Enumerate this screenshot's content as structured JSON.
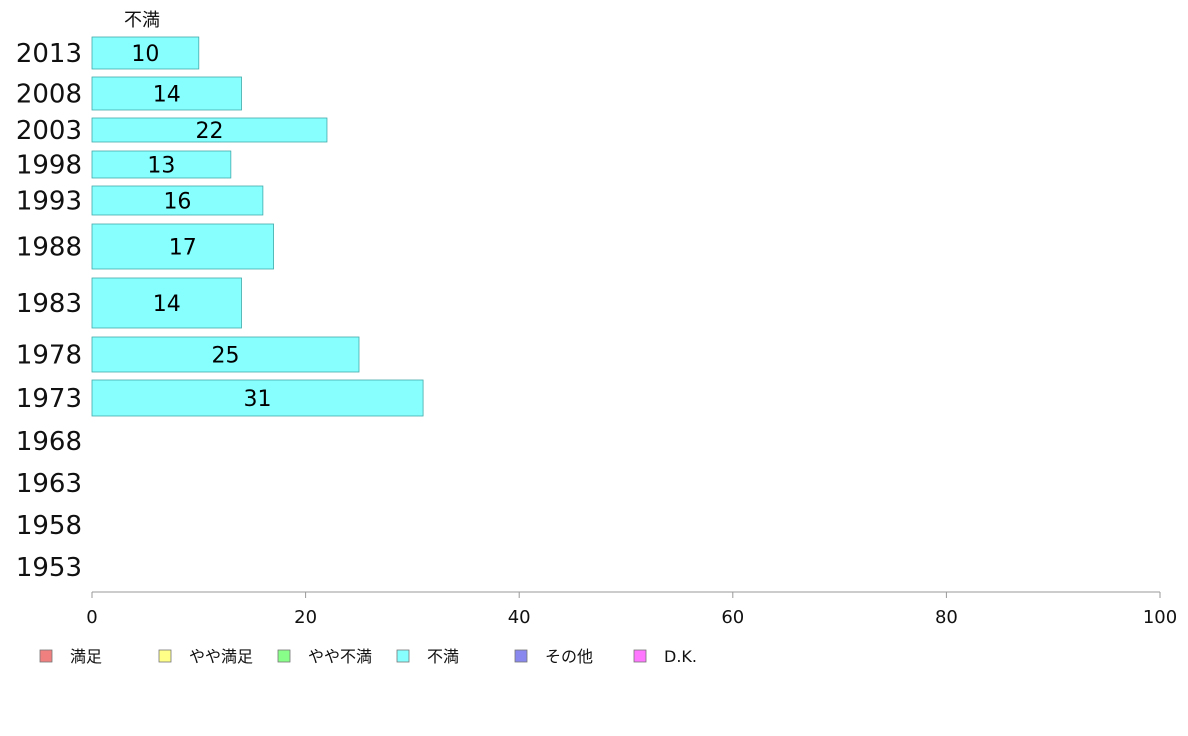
{
  "chart_data": {
    "type": "bar",
    "orientation": "horizontal",
    "column_header": "不満",
    "categories": [
      "2013",
      "2008",
      "2003",
      "1998",
      "1993",
      "1988",
      "1983",
      "1978",
      "1973",
      "1968",
      "1963",
      "1958",
      "1953"
    ],
    "series": [
      {
        "name": "不満",
        "color": "#88ffff",
        "values": [
          10,
          14,
          22,
          13,
          16,
          17,
          14,
          25,
          31,
          null,
          null,
          null,
          null
        ]
      }
    ],
    "xlim": [
      0,
      100
    ],
    "xticks": [
      0,
      20,
      40,
      60,
      80,
      100
    ],
    "legend": {
      "placement": "bottom",
      "items": [
        {
          "label": "満足",
          "color": "#f08080"
        },
        {
          "label": "やや満足",
          "color": "#ffff88"
        },
        {
          "label": "やや不満",
          "color": "#88ff88"
        },
        {
          "label": "不満",
          "color": "#88ffff"
        },
        {
          "label": "その他",
          "color": "#8888ee"
        },
        {
          "label": "D.K.",
          "color": "#ff77ff"
        }
      ]
    }
  }
}
